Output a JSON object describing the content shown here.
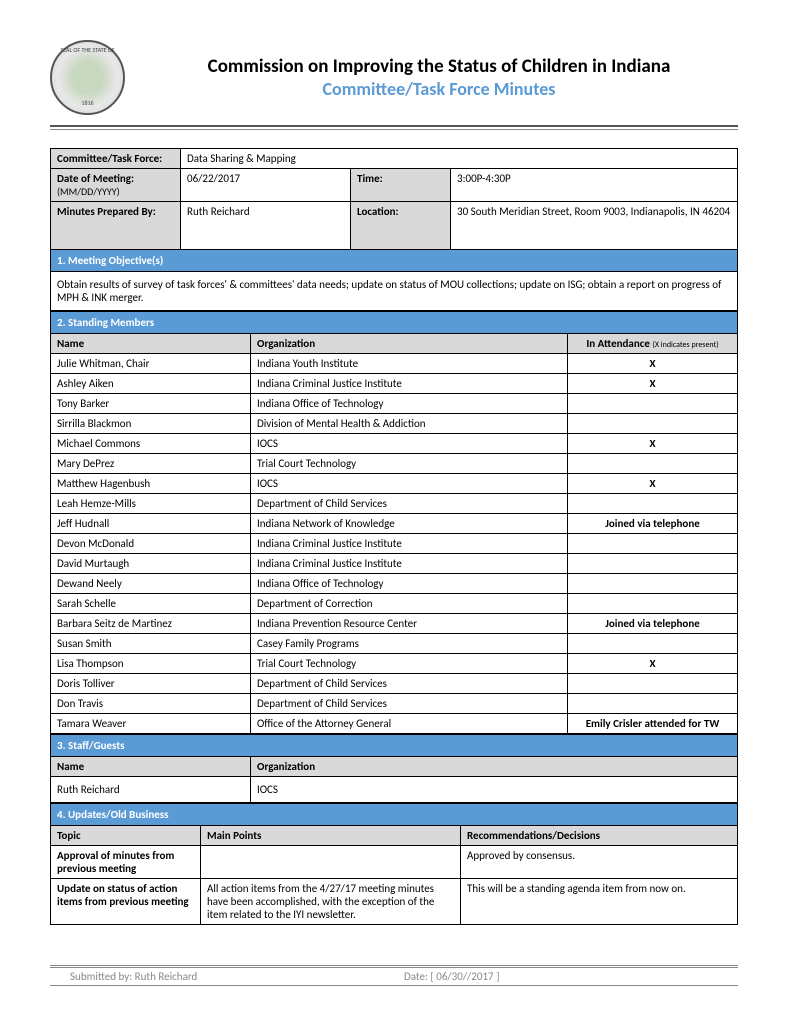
{
  "header": {
    "title_main": "Commission on Improving the Status of Children in Indiana",
    "title_sub": "Committee/Task Force Minutes"
  },
  "meta": {
    "committee_label": "Committee/Task Force:",
    "committee_value": "Data Sharing & Mapping",
    "date_label": "Date of Meeting:",
    "date_sub": "(MM/DD/YYYY)",
    "date_value": "06/22/2017",
    "time_label": "Time:",
    "time_value": "3:00P-4:30P",
    "prepared_label": "Minutes Prepared By:",
    "prepared_value": "Ruth Reichard",
    "location_label": "Location:",
    "location_value": "30 South Meridian Street, Room 9003, Indianapolis, IN 46204"
  },
  "sections": {
    "objectives_header": "1. Meeting Objective(s)",
    "objectives_text": "Obtain results of survey of task forces' & committees' data needs; update on status of MOU collections; update on ISG; obtain a report on progress of MPH & INK merger.",
    "members_header": "2. Standing Members",
    "members_cols": {
      "name": "Name",
      "org": "Organization",
      "att": "In Attendance ",
      "att_sub": "(X indicates present)"
    },
    "members": [
      {
        "name": "Julie Whitman, Chair",
        "org": "Indiana Youth Institute",
        "att": "X"
      },
      {
        "name": "Ashley Aiken",
        "org": "Indiana Criminal Justice Institute",
        "att": "X"
      },
      {
        "name": "Tony Barker",
        "org": "Indiana Office of Technology",
        "att": ""
      },
      {
        "name": "Sirrilla Blackmon",
        "org": "Division of Mental Health & Addiction",
        "att": ""
      },
      {
        "name": "Michael Commons",
        "org": "IOCS",
        "att": "X"
      },
      {
        "name": "Mary DePrez",
        "org": "Trial Court Technology",
        "att": ""
      },
      {
        "name": "Matthew Hagenbush",
        "org": "IOCS",
        "att": "X"
      },
      {
        "name": "Leah Hemze-Mills",
        "org": "Department of Child Services",
        "att": ""
      },
      {
        "name": "Jeff Hudnall",
        "org": "Indiana Network of Knowledge",
        "att": "Joined via telephone"
      },
      {
        "name": "Devon McDonald",
        "org": "Indiana Criminal Justice Institute",
        "att": ""
      },
      {
        "name": "David Murtaugh",
        "org": "Indiana Criminal Justice Institute",
        "att": ""
      },
      {
        "name": "Dewand Neely",
        "org": "Indiana Office of Technology",
        "att": ""
      },
      {
        "name": "Sarah Schelle",
        "org": "Department of Correction",
        "att": ""
      },
      {
        "name": "Barbara Seitz de Martinez",
        "org": "Indiana Prevention Resource Center",
        "att": "Joined via telephone"
      },
      {
        "name": "Susan Smith",
        "org": "Casey Family Programs",
        "att": ""
      },
      {
        "name": "Lisa Thompson",
        "org": "Trial Court Technology",
        "att": "X"
      },
      {
        "name": "Doris Tolliver",
        "org": "Department of Child Services",
        "att": ""
      },
      {
        "name": "Don Travis",
        "org": "Department of Child Services",
        "att": ""
      },
      {
        "name": "Tamara Weaver",
        "org": "Office of the Attorney General",
        "att": "Emily Crisler attended for TW"
      }
    ],
    "staff_header": "3. Staff/Guests",
    "staff_cols": {
      "name": "Name",
      "org": "Organization"
    },
    "staff": [
      {
        "name": "Ruth Reichard",
        "org": "IOCS"
      }
    ],
    "updates_header": "4. Updates/Old Business",
    "updates_cols": {
      "topic": "Topic",
      "points": "Main Points",
      "rec": "Recommendations/Decisions"
    },
    "updates": [
      {
        "topic": "Approval of minutes from previous meeting",
        "points": "",
        "rec": "Approved by consensus."
      },
      {
        "topic": "Update on status of action items from previous meeting",
        "points": "All action items from the 4/27/17 meeting minutes have been accomplished, with the exception of the item related to the IYI newsletter.",
        "rec": "This will be a standing agenda item from now on."
      }
    ]
  },
  "footer": {
    "submitted": "Submitted by: Ruth Reichard",
    "date": "Date: [   06/30//2017 ]"
  }
}
